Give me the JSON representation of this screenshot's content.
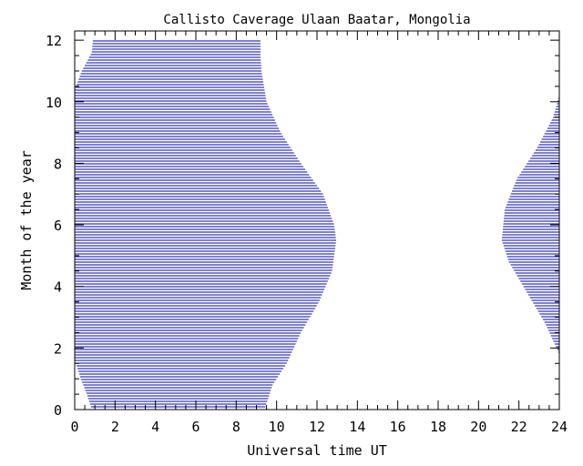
{
  "chart_data": {
    "type": "area",
    "title": "Callisto Caverage Ulaan Baatar, Mongolia",
    "xlabel": "Universal time UT",
    "ylabel": "Month of the year",
    "xlim": [
      0,
      24
    ],
    "ylim": [
      0,
      12.3
    ],
    "xticks": [
      "0",
      "2",
      "4",
      "6",
      "8",
      "10",
      "12",
      "14",
      "16",
      "18",
      "20",
      "22",
      "24"
    ],
    "yticks": [
      "0",
      "2",
      "4",
      "6",
      "8",
      "10",
      "12"
    ],
    "grid": false,
    "fill_color": "#0000aa",
    "fill_style": "horizontal-hatch",
    "regions": [
      {
        "boundary": [
          [
            0.85,
            0.0
          ],
          [
            0.6,
            0.5
          ],
          [
            0.3,
            1.0
          ],
          [
            0.0,
            1.6
          ],
          [
            0.0,
            10.4
          ],
          [
            0.35,
            11.0
          ],
          [
            0.85,
            11.6
          ],
          [
            0.9,
            12.0
          ],
          [
            9.2,
            12.0
          ],
          [
            9.2,
            11.5
          ],
          [
            9.25,
            11.0
          ],
          [
            9.5,
            10.0
          ],
          [
            10.2,
            9.0
          ],
          [
            11.2,
            8.0
          ],
          [
            12.3,
            7.0
          ],
          [
            12.85,
            6.0
          ],
          [
            12.95,
            5.5
          ],
          [
            12.75,
            4.5
          ],
          [
            12.1,
            3.5
          ],
          [
            11.2,
            2.5
          ],
          [
            10.5,
            1.5
          ],
          [
            9.8,
            0.8
          ],
          [
            9.4,
            0.0
          ]
        ]
      },
      {
        "boundary": [
          [
            24.0,
            1.8
          ],
          [
            23.3,
            2.8
          ],
          [
            22.4,
            3.8
          ],
          [
            21.5,
            4.8
          ],
          [
            21.15,
            5.5
          ],
          [
            21.3,
            6.5
          ],
          [
            21.9,
            7.5
          ],
          [
            22.9,
            8.5
          ],
          [
            23.7,
            9.5
          ],
          [
            24.0,
            10.2
          ]
        ]
      }
    ]
  }
}
